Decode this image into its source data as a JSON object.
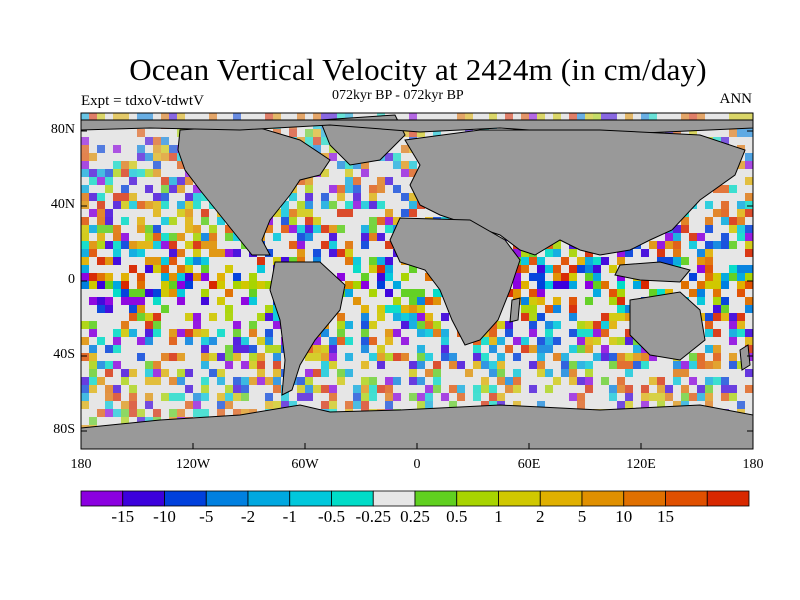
{
  "title": "Ocean Vertical Velocity at 2424m (in cm/day)",
  "subtitle": "072kyr BP - 072kyr BP",
  "expt_label": "Expt = tdxoV-tdwtV",
  "season": "ANN",
  "map": {
    "land_color": "#999999",
    "lat_ticks": [
      "80N",
      "40N",
      "0",
      "40S",
      "80S"
    ],
    "lon_ticks": [
      "180",
      "120W",
      "60W",
      "0",
      "60E",
      "120E",
      "180"
    ]
  },
  "colorbar": {
    "colors": [
      "#8b00e0",
      "#3c00dc",
      "#0040dc",
      "#0080e0",
      "#00a8e0",
      "#00c8dc",
      "#00dcc8",
      "#e6e6e6",
      "#60d020",
      "#a8d400",
      "#d0c800",
      "#e0b000",
      "#e09000",
      "#e07000",
      "#e05000",
      "#d82800"
    ],
    "labels": [
      "-15",
      "-10",
      "-5",
      "-2",
      "-1",
      "-0.5",
      "-0.25",
      "0.25",
      "0.5",
      "1",
      "2",
      "5",
      "10",
      "15"
    ]
  }
}
